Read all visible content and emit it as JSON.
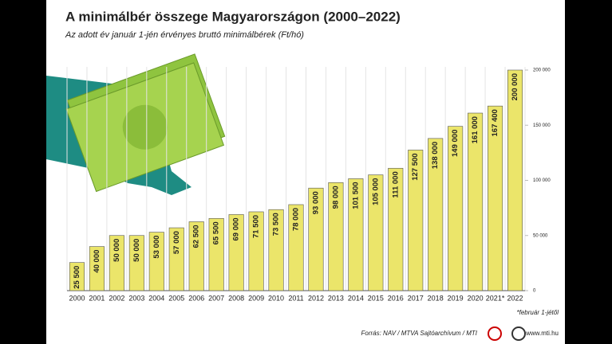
{
  "chart_data": {
    "type": "bar",
    "title": "A minimálbér összege Magyarországon (2000–2022)",
    "subtitle": "Az adott év január 1-jén érvényes bruttó minimálbérek (Ft/hó)",
    "categories": [
      "2000",
      "2001",
      "2002",
      "2003",
      "2004",
      "2005",
      "2006",
      "2007",
      "2008",
      "2009",
      "2010",
      "2011",
      "2012",
      "2013",
      "2014",
      "2015",
      "2016",
      "2017",
      "2018",
      "2019",
      "2020",
      "2021*",
      "2022"
    ],
    "values": [
      25500,
      40000,
      50000,
      50000,
      53000,
      57000,
      62500,
      65500,
      69000,
      71500,
      73500,
      78000,
      93000,
      98000,
      101500,
      105000,
      111000,
      127500,
      138000,
      149000,
      161000,
      167400,
      200000
    ],
    "value_labels": [
      "25 500",
      "40 000",
      "50 000",
      "50 000",
      "53 000",
      "57 000",
      "62 500",
      "65 500",
      "69 000",
      "71 500",
      "73 500",
      "78 000",
      "93 000",
      "98 000",
      "101 500",
      "105 000",
      "111 000",
      "127 500",
      "138 000",
      "149 000",
      "161 000",
      "167 400",
      "200 000"
    ],
    "color": "#ebe56a",
    "ylim": [
      0,
      200000
    ],
    "yticks": [
      0,
      {
        "value": 50000,
        "label": "50 000"
      },
      {
        "value": 100000,
        "label": "100 000"
      },
      {
        "value": 150000,
        "label": "150 000"
      },
      {
        "value": 200000,
        "label": "200 000"
      }
    ],
    "footnote": "*február 1-jétől",
    "source": "Forrás: NAV / MTVA Sajtóarchívum / MTI",
    "website": "www.mti.hu"
  }
}
